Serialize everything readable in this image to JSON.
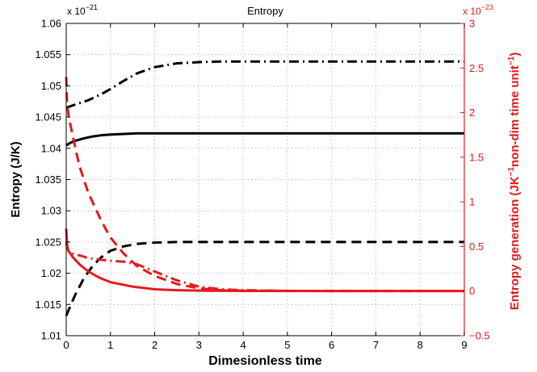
{
  "chart_data": {
    "type": "line",
    "title": "Entropy",
    "xlabel": "Dimesionless time",
    "ylabel_left": "Entropy (J/K)",
    "ylabel_right": {
      "base": "Entropy generation (JK",
      "sup1": "−1",
      "mid": "non-dim time unit",
      "sup2": "−1",
      "end": ")"
    },
    "left_multiplier": {
      "base": "x 10",
      "exp": "−21"
    },
    "right_multiplier": {
      "base": "x 10",
      "exp": "−23"
    },
    "xlim": [
      0,
      9
    ],
    "ylim_left": [
      1.01,
      1.06
    ],
    "ylim_right": [
      -0.5,
      3
    ],
    "x_ticks": [
      "0",
      "1",
      "2",
      "3",
      "4",
      "5",
      "6",
      "7",
      "8",
      "9"
    ],
    "y_left_ticks": [
      "1.01",
      "1.015",
      "1.02",
      "1.025",
      "1.03",
      "1.035",
      "1.04",
      "1.045",
      "1.05",
      "1.055",
      "1.06"
    ],
    "y_right_ticks": [
      "−0.5",
      "0",
      "0.5",
      "1",
      "1.5",
      "2",
      "2.5",
      "3"
    ],
    "grid": true,
    "left_color": "#000000",
    "right_color": "#e31a1c",
    "series": [
      {
        "axis": "left",
        "style": "solid",
        "color": "#000000",
        "x": [
          0,
          0.1,
          0.2,
          0.4,
          0.6,
          0.8,
          1.0,
          1.3,
          1.6,
          2.0,
          2.5,
          3.0,
          4,
          5,
          6,
          7,
          8,
          9
        ],
        "y": [
          1.0405,
          1.0409,
          1.0412,
          1.0416,
          1.0419,
          1.0421,
          1.0422,
          1.0423,
          1.0424,
          1.0424,
          1.0424,
          1.0424,
          1.0424,
          1.0424,
          1.0424,
          1.0424,
          1.0424,
          1.0424
        ]
      },
      {
        "axis": "left",
        "style": "dashdot",
        "color": "#000000",
        "x": [
          0,
          0.2,
          0.5,
          0.8,
          1.0,
          1.3,
          1.6,
          2.0,
          2.5,
          3.0,
          3.5,
          4,
          5,
          6,
          7,
          8,
          9
        ],
        "y": [
          1.0465,
          1.047,
          1.0477,
          1.0487,
          1.0495,
          1.0508,
          1.052,
          1.053,
          1.0536,
          1.0538,
          1.0539,
          1.0539,
          1.0539,
          1.0539,
          1.0539,
          1.0539,
          1.0539
        ]
      },
      {
        "axis": "left",
        "style": "dashed",
        "color": "#000000",
        "x": [
          0,
          0.2,
          0.4,
          0.6,
          0.8,
          1.0,
          1.3,
          1.6,
          2.0,
          2.5,
          3.0,
          4,
          5,
          6,
          7,
          8,
          9
        ],
        "y": [
          1.0132,
          1.0165,
          1.0192,
          1.0212,
          1.0226,
          1.0236,
          1.0243,
          1.0247,
          1.0249,
          1.025,
          1.025,
          1.025,
          1.025,
          1.025,
          1.025,
          1.025,
          1.025
        ]
      },
      {
        "axis": "right",
        "style": "solid",
        "color": "#e31a1c",
        "x": [
          0,
          0.02,
          0.05,
          0.15,
          0.3,
          0.5,
          0.75,
          1.0,
          1.5,
          2.0,
          2.5,
          3.0,
          4,
          5,
          6,
          7,
          8,
          9
        ],
        "y": [
          0.7,
          0.52,
          0.45,
          0.38,
          0.3,
          0.22,
          0.15,
          0.1,
          0.05,
          0.02,
          0.01,
          0.005,
          0.002,
          0.001,
          0.001,
          0.001,
          0.001,
          0.001
        ]
      },
      {
        "axis": "right",
        "style": "dashed",
        "color": "#e31a1c",
        "x": [
          0,
          0.02,
          0.05,
          0.1,
          0.2,
          0.3,
          0.5,
          0.8,
          1.0,
          1.3,
          1.6,
          2.0,
          2.5,
          3.0,
          3.5,
          4,
          5,
          6,
          7,
          8,
          9
        ],
        "y": [
          2.4,
          2.1,
          1.98,
          1.85,
          1.62,
          1.4,
          1.1,
          0.78,
          0.6,
          0.42,
          0.28,
          0.17,
          0.08,
          0.03,
          0.01,
          0.005,
          0.002,
          0.001,
          0.001,
          0.001,
          0.001
        ]
      },
      {
        "axis": "right",
        "style": "dashdot",
        "color": "#e31a1c",
        "x": [
          0,
          0.02,
          0.05,
          0.15,
          0.3,
          0.5,
          0.8,
          1.0,
          1.3,
          1.6,
          2.0,
          2.5,
          3.0,
          3.5,
          4,
          5,
          6,
          7,
          8,
          9
        ],
        "y": [
          0.55,
          0.5,
          0.45,
          0.42,
          0.4,
          0.37,
          0.35,
          0.34,
          0.33,
          0.3,
          0.22,
          0.12,
          0.05,
          0.02,
          0.01,
          0.002,
          0.001,
          0.001,
          0.001,
          0.001
        ]
      }
    ]
  }
}
